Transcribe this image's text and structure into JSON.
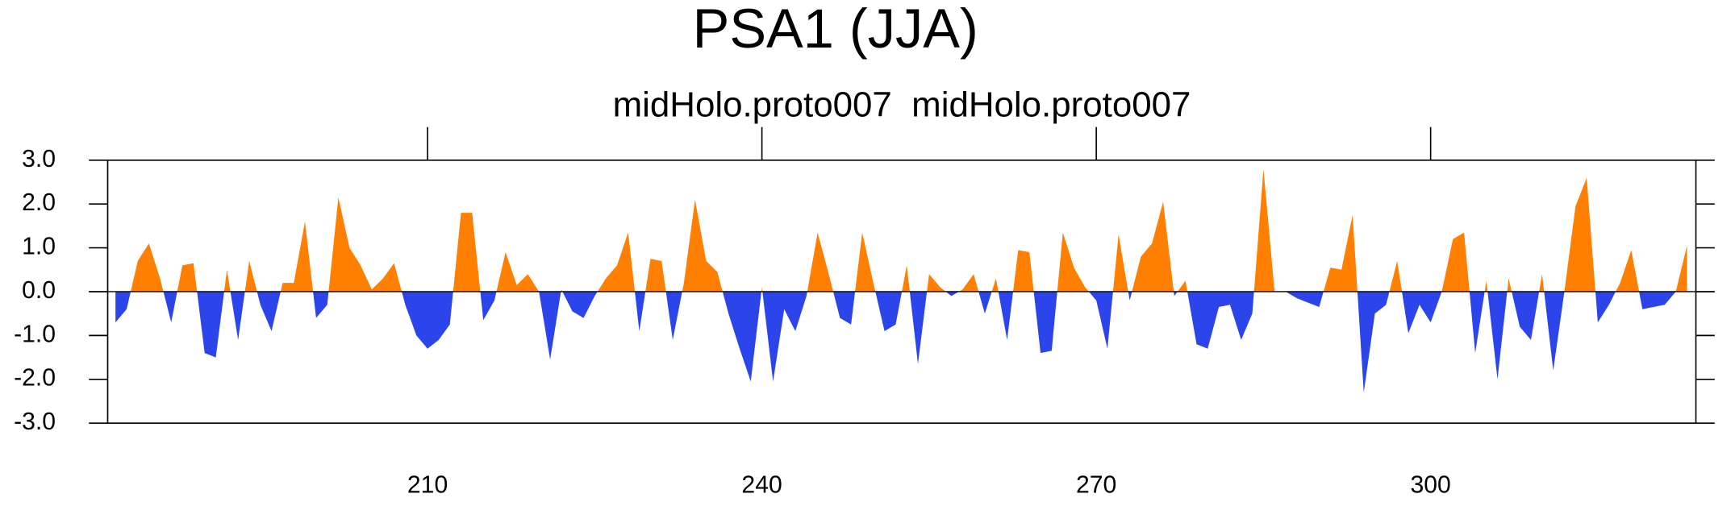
{
  "chart_data": {
    "type": "area",
    "title": "PSA1 (JJA)",
    "subtitle": "midHolo.proto007  midHolo.proto007",
    "positive_color": "#ff8000",
    "negative_color": "#2b45eb",
    "x": [
      182,
      183,
      184,
      185,
      186,
      187,
      188,
      189,
      190,
      191,
      192,
      193,
      194,
      195,
      196,
      197,
      198,
      199,
      200,
      201,
      202,
      203,
      204,
      205,
      206,
      207,
      208,
      209,
      210,
      211,
      212,
      213,
      214,
      215,
      216,
      217,
      218,
      219,
      220,
      221,
      222,
      223,
      224,
      225,
      226,
      227,
      228,
      229,
      230,
      231,
      232,
      233,
      234,
      235,
      236,
      237,
      238,
      239,
      240,
      241,
      242,
      243,
      244,
      245,
      246,
      247,
      248,
      249,
      250,
      251,
      252,
      253,
      254,
      255,
      256,
      257,
      258,
      259,
      260,
      261,
      262,
      263,
      264,
      265,
      266,
      267,
      268,
      269,
      270,
      271,
      272,
      273,
      274,
      275,
      276,
      277,
      278,
      279,
      280,
      281,
      282,
      283,
      284,
      285,
      286,
      287,
      288,
      289,
      290,
      291,
      292,
      293,
      294,
      295,
      296,
      297,
      298,
      299,
      300,
      301,
      302,
      303,
      304,
      305,
      306,
      307,
      308,
      309,
      310,
      311,
      312,
      313,
      314,
      315,
      316,
      317,
      318,
      319,
      320,
      321,
      322,
      323
    ],
    "values": [
      -0.7,
      -0.4,
      0.7,
      1.1,
      0.3,
      -0.7,
      0.6,
      0.65,
      -1.4,
      -1.5,
      0.5,
      -1.1,
      0.7,
      -0.3,
      -0.9,
      0.2,
      0.2,
      1.6,
      -0.6,
      -0.3,
      2.15,
      1.0,
      0.6,
      0.05,
      0.3,
      0.65,
      -0.3,
      -1.0,
      -1.3,
      -1.1,
      -0.75,
      1.8,
      1.8,
      -0.65,
      -0.2,
      0.9,
      0.15,
      0.4,
      0.0,
      -1.55,
      0.05,
      -0.45,
      -0.6,
      -0.1,
      0.3,
      0.6,
      1.35,
      -0.9,
      0.75,
      0.7,
      -1.1,
      0.2,
      2.1,
      0.7,
      0.45,
      -0.5,
      -1.3,
      -2.05,
      0.1,
      -2.05,
      -0.4,
      -0.9,
      -0.1,
      1.35,
      0.4,
      -0.6,
      -0.75,
      1.35,
      0.2,
      -0.9,
      -0.75,
      0.6,
      -1.65,
      0.4,
      0.1,
      -0.1,
      0.05,
      0.4,
      -0.5,
      0.3,
      -1.1,
      0.95,
      0.9,
      -1.4,
      -1.35,
      1.35,
      0.55,
      0.1,
      -0.2,
      -1.3,
      1.3,
      -0.2,
      0.8,
      1.1,
      2.05,
      -0.1,
      0.25,
      -1.2,
      -1.3,
      -0.35,
      -0.3,
      -1.1,
      -0.5,
      2.8,
      0.0,
      0.0,
      -0.15,
      -0.25,
      -0.35,
      0.55,
      0.5,
      1.75,
      -2.3,
      -0.5,
      -0.3,
      0.7,
      -0.95,
      -0.3,
      -0.7,
      0.0,
      1.2,
      1.35,
      -1.4,
      0.25,
      -2.0,
      0.3,
      -0.8,
      -1.1,
      0.4,
      -1.8,
      0.0,
      1.95,
      2.6,
      -0.7,
      -0.3,
      0.2,
      0.95,
      -0.4,
      -0.35,
      -0.3,
      0.0,
      1.05
    ],
    "xlim": [
      181.3,
      323.8
    ],
    "ylim": [
      -3.0,
      3.0
    ],
    "xticks": [
      210,
      240,
      270,
      300
    ],
    "yticks": [
      {
        "value": -3.0,
        "label": "-3.0"
      },
      {
        "value": -2.0,
        "label": "-2.0"
      },
      {
        "value": -1.0,
        "label": "-1.0"
      },
      {
        "value": 0.0,
        "label": "0.0"
      },
      {
        "value": 1.0,
        "label": "1.0"
      },
      {
        "value": 2.0,
        "label": "2.0"
      },
      {
        "value": 3.0,
        "label": "3.0"
      }
    ]
  }
}
